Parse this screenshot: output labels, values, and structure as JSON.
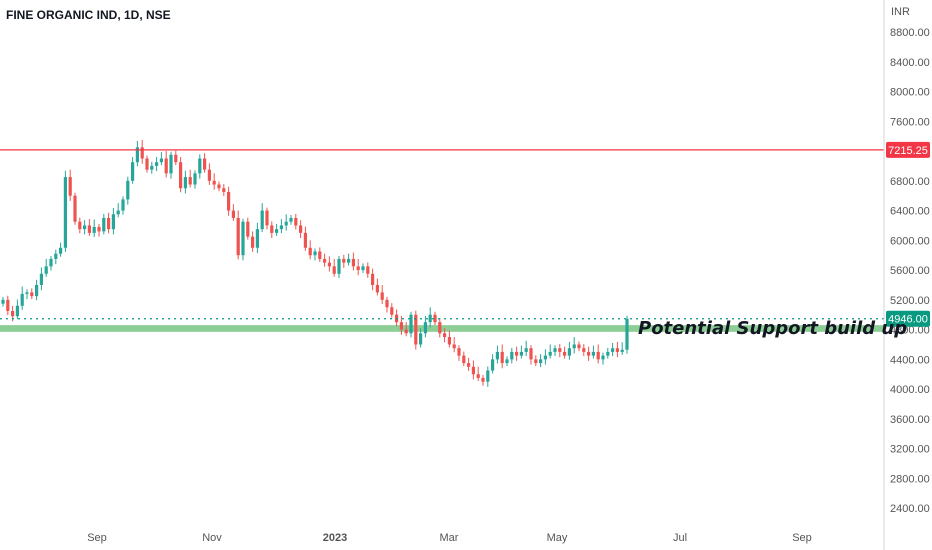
{
  "header": {
    "symbol_title": "FINE ORGANIC IND, 1D, NSE",
    "currency": "INR"
  },
  "annotation_text": "Potential Support build up",
  "colors": {
    "up": "#26a69a",
    "down": "#ef5350",
    "resistance": "#f23645",
    "support_zone": "#7fc98a",
    "price_line": "#089981"
  },
  "chart_data": {
    "type": "candlestick",
    "y_ticks": [
      "2400.00",
      "2800.00",
      "3200.00",
      "3600.00",
      "4000.00",
      "4400.00",
      "4800.00",
      "5200.00",
      "5600.00",
      "6000.00",
      "6400.00",
      "6800.00",
      "7600.00",
      "8000.00",
      "8400.00",
      "8800.00"
    ],
    "x_ticks": [
      "Sep",
      "Nov",
      "2023",
      "Mar",
      "May",
      "Jul",
      "Sep"
    ],
    "ylim": [
      2000,
      9000
    ],
    "resistance_level": {
      "value": 7215.25,
      "label": "7215.25"
    },
    "current_price": {
      "value": 4946,
      "label": "4946.00"
    },
    "support_zone": [
      4770,
      4860
    ],
    "closes": [
      5200,
      5050,
      4980,
      5120,
      5280,
      5300,
      5250,
      5400,
      5550,
      5650,
      5750,
      5820,
      5900,
      6850,
      6600,
      6250,
      6150,
      6200,
      6100,
      6180,
      6120,
      6300,
      6150,
      6350,
      6400,
      6550,
      6800,
      7050,
      7250,
      7100,
      6950,
      7000,
      7050,
      7100,
      6900,
      7150,
      7050,
      6700,
      6850,
      6750,
      6900,
      7100,
      6950,
      6800,
      6750,
      6700,
      6650,
      6400,
      6300,
      5800,
      6250,
      6050,
      5900,
      6150,
      6400,
      6200,
      6100,
      6150,
      6200,
      6250,
      6300,
      6200,
      6100,
      5900,
      5800,
      5850,
      5750,
      5700,
      5650,
      5550,
      5750,
      5700,
      5750,
      5650,
      5600,
      5650,
      5550,
      5400,
      5300,
      5200,
      5100,
      5000,
      4900,
      4800,
      4750,
      5000,
      4600,
      4750,
      4900,
      5000,
      4900,
      4750,
      4700,
      4600,
      4550,
      4450,
      4350,
      4300,
      4200,
      4150,
      4100,
      4250,
      4400,
      4500,
      4350,
      4400,
      4500,
      4450,
      4500,
      4550,
      4400,
      4350,
      4400,
      4450,
      4500,
      4550,
      4500,
      4450,
      4550,
      4600,
      4550,
      4500,
      4450,
      4500,
      4400,
      4450,
      4500,
      4550,
      4500,
      4530,
      4946
    ]
  }
}
